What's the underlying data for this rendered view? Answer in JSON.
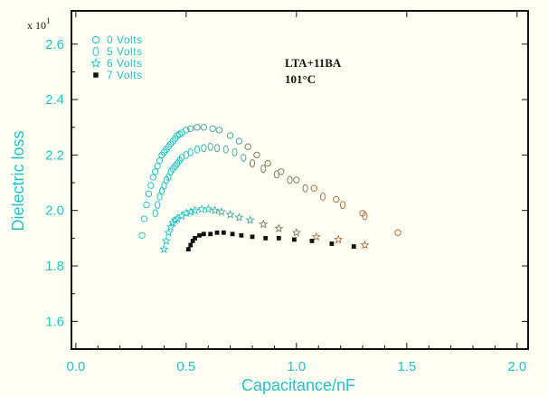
{
  "chart_data": {
    "type": "scatter",
    "title": "",
    "xlabel": "Capacitance/nF",
    "ylabel": "Dielectric loss",
    "y_multiplier": "x 10",
    "y_multiplier_exp": "1",
    "xlim": [
      -0.02,
      2.05
    ],
    "ylim": [
      1.5,
      2.72
    ],
    "x_ticks": [
      0.0,
      0.5,
      1.0,
      1.5,
      2.0
    ],
    "x_tick_labels": [
      "0.0",
      "0.5",
      "1.0",
      "1.5",
      "2.0"
    ],
    "y_ticks": [
      1.6,
      1.8,
      2.0,
      2.2,
      2.4,
      2.6
    ],
    "y_tick_labels": [
      "1.6",
      "1.8",
      "2.0",
      "2.2",
      "2.4",
      "2.6"
    ],
    "grid": false,
    "legend_position": "top-left",
    "annotations": [
      "LTA+11BA",
      "101°C"
    ],
    "colors": {
      "axis": "#22c2c8",
      "frame": "#111111",
      "background": "#fffff4"
    },
    "series": [
      {
        "name": "0 Volts",
        "marker": "circle",
        "color": "#22c2c8",
        "x": [
          0.3,
          0.31,
          0.32,
          0.33,
          0.34,
          0.35,
          0.36,
          0.37,
          0.38,
          0.39,
          0.4,
          0.41,
          0.42,
          0.43,
          0.44,
          0.45,
          0.46,
          0.47,
          0.48,
          0.5,
          0.52,
          0.55,
          0.58,
          0.62,
          0.65,
          0.7,
          0.74,
          0.78,
          0.82,
          0.87,
          0.93,
          1.0,
          1.08,
          1.18,
          1.3,
          1.46
        ],
        "y": [
          1.91,
          1.97,
          2.02,
          2.06,
          2.09,
          2.12,
          2.14,
          2.16,
          2.18,
          2.2,
          2.21,
          2.22,
          2.23,
          2.24,
          2.25,
          2.26,
          2.27,
          2.275,
          2.28,
          2.29,
          2.295,
          2.3,
          2.3,
          2.295,
          2.29,
          2.27,
          2.25,
          2.23,
          2.2,
          2.17,
          2.14,
          2.11,
          2.08,
          2.04,
          1.99,
          1.92
        ]
      },
      {
        "name": "5 Volts",
        "marker": "diamond",
        "color": "#22c2c8",
        "x": [
          0.36,
          0.37,
          0.38,
          0.39,
          0.4,
          0.41,
          0.42,
          0.43,
          0.44,
          0.45,
          0.46,
          0.47,
          0.48,
          0.5,
          0.52,
          0.55,
          0.58,
          0.61,
          0.64,
          0.68,
          0.72,
          0.76,
          0.8,
          0.85,
          0.91,
          0.97,
          1.04,
          1.12,
          1.21,
          1.31
        ],
        "y": [
          1.99,
          2.02,
          2.05,
          2.07,
          2.09,
          2.11,
          2.12,
          2.14,
          2.15,
          2.16,
          2.17,
          2.18,
          2.19,
          2.2,
          2.21,
          2.22,
          2.225,
          2.23,
          2.225,
          2.22,
          2.21,
          2.19,
          2.17,
          2.15,
          2.13,
          2.11,
          2.08,
          2.05,
          2.02,
          1.98
        ]
      },
      {
        "name": "6 Volts",
        "marker": "star",
        "color": "#22c2c8",
        "x": [
          0.4,
          0.41,
          0.42,
          0.43,
          0.44,
          0.45,
          0.46,
          0.48,
          0.5,
          0.52,
          0.54,
          0.57,
          0.6,
          0.63,
          0.66,
          0.7,
          0.74,
          0.79,
          0.85,
          0.92,
          1.0,
          1.09,
          1.19,
          1.31
        ],
        "y": [
          1.86,
          1.89,
          1.92,
          1.94,
          1.955,
          1.965,
          1.97,
          1.98,
          1.99,
          1.995,
          2.0,
          2.005,
          2.005,
          2.0,
          1.995,
          1.985,
          1.975,
          1.965,
          1.95,
          1.935,
          1.92,
          1.905,
          1.895,
          1.875
        ]
      },
      {
        "name": "7 Volts",
        "marker": "square",
        "color": "#111111",
        "x": [
          0.51,
          0.52,
          0.53,
          0.54,
          0.56,
          0.58,
          0.61,
          0.64,
          0.67,
          0.71,
          0.75,
          0.8,
          0.86,
          0.92,
          0.99,
          1.07,
          1.16,
          1.26
        ],
        "y": [
          1.86,
          1.875,
          1.89,
          1.9,
          1.91,
          1.915,
          1.915,
          1.92,
          1.92,
          1.915,
          1.91,
          1.905,
          1.9,
          1.9,
          1.895,
          1.89,
          1.88,
          1.87
        ]
      }
    ]
  }
}
